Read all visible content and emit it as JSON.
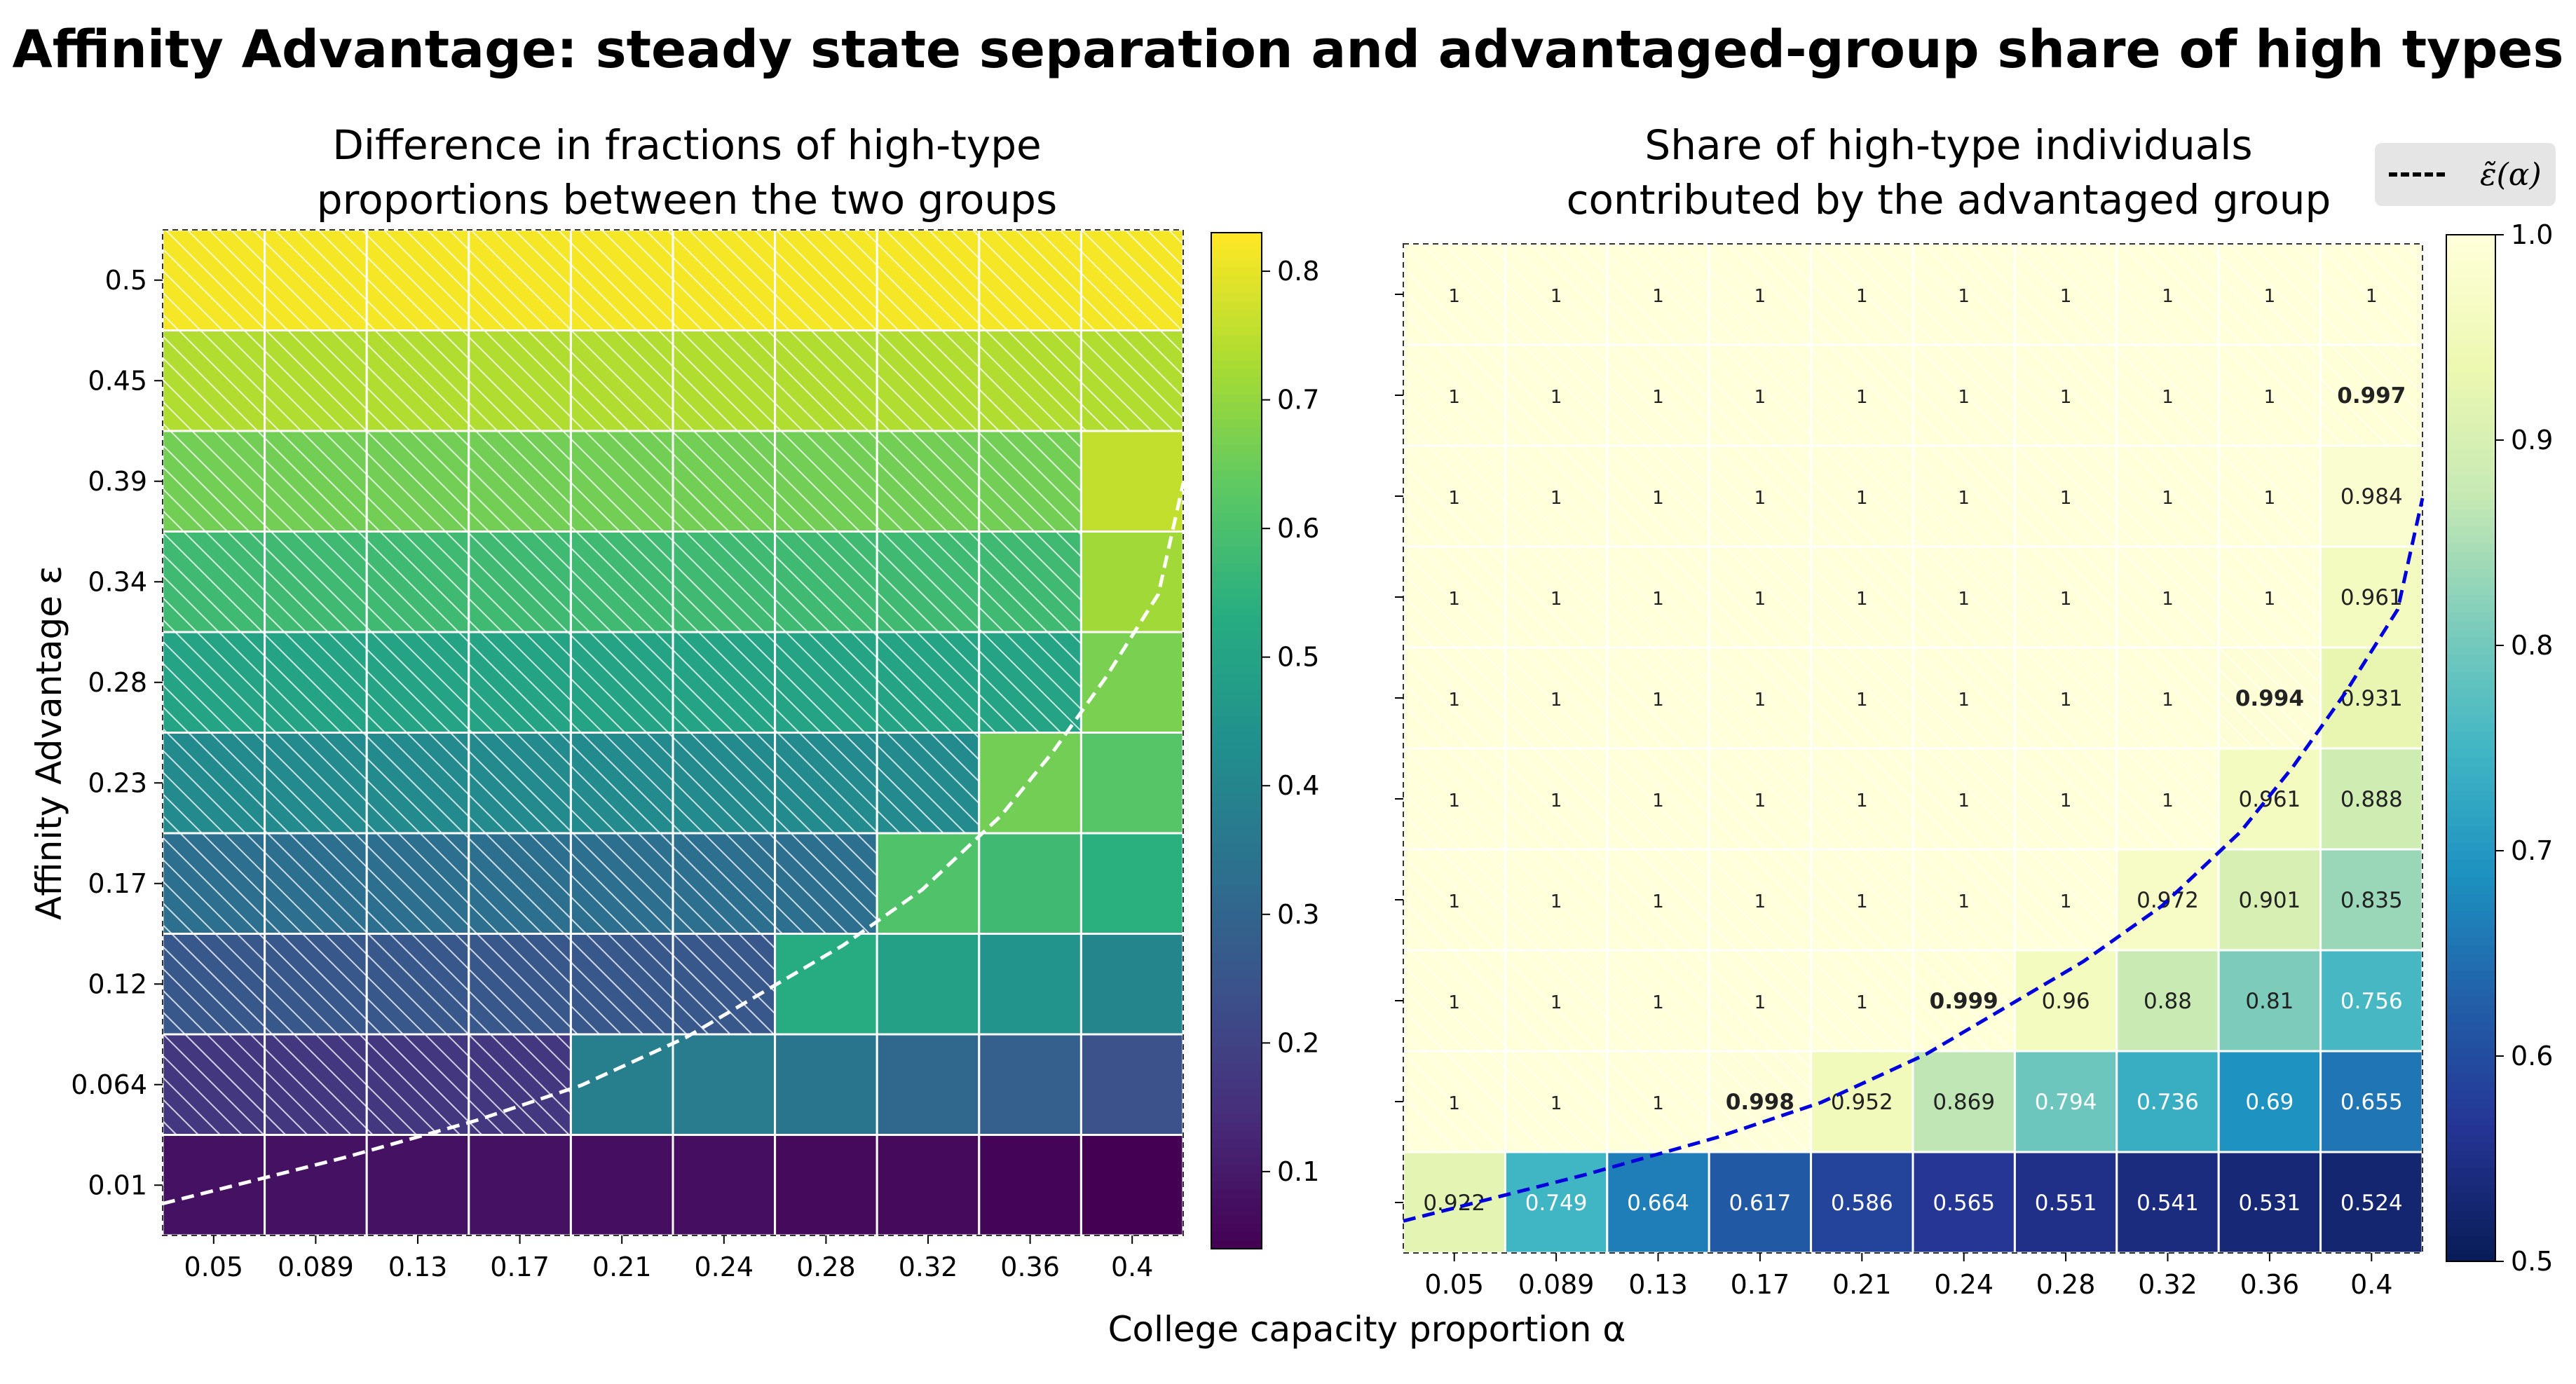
{
  "figure": {
    "suptitle": "Affinity Advantage: steady state separation and advantaged-group share of high types",
    "xlabel": "College capacity proportion α",
    "ylabel": "Affinity Advantage ε",
    "legend": {
      "label": "ε̃(α)",
      "style": "dashed black line",
      "placement": "top-right"
    }
  },
  "chart_data": [
    {
      "type": "heatmap",
      "title": "Difference in fractions of high-type\nproportions between the two groups",
      "xlabel": "College capacity proportion α",
      "ylabel": "Affinity Advantage ε",
      "x_ticks": [
        "0.05",
        "0.089",
        "0.13",
        "0.17",
        "0.21",
        "0.24",
        "0.28",
        "0.32",
        "0.36",
        "0.4"
      ],
      "y_ticks": [
        "0.5",
        "0.45",
        "0.39",
        "0.34",
        "0.28",
        "0.23",
        "0.17",
        "0.12",
        "0.064",
        "0.01"
      ],
      "colormap": "viridis",
      "vmin": 0.04,
      "vmax": 0.83,
      "colorbar_ticks": [
        "0.1",
        "0.2",
        "0.3",
        "0.4",
        "0.5",
        "0.6",
        "0.7",
        "0.8"
      ],
      "values": [
        [
          0.82,
          0.82,
          0.82,
          0.82,
          0.82,
          0.82,
          0.82,
          0.82,
          0.82,
          0.82
        ],
        [
          0.74,
          0.74,
          0.74,
          0.74,
          0.74,
          0.74,
          0.74,
          0.74,
          0.74,
          0.74
        ],
        [
          0.66,
          0.66,
          0.66,
          0.66,
          0.66,
          0.66,
          0.66,
          0.66,
          0.66,
          0.76
        ],
        [
          0.58,
          0.58,
          0.58,
          0.58,
          0.58,
          0.58,
          0.58,
          0.58,
          0.58,
          0.72
        ],
        [
          0.5,
          0.5,
          0.5,
          0.5,
          0.5,
          0.5,
          0.5,
          0.5,
          0.5,
          0.67
        ],
        [
          0.42,
          0.42,
          0.42,
          0.42,
          0.42,
          0.42,
          0.42,
          0.42,
          0.66,
          0.62
        ],
        [
          0.33,
          0.33,
          0.33,
          0.33,
          0.33,
          0.33,
          0.33,
          0.61,
          0.58,
          0.54
        ],
        [
          0.26,
          0.26,
          0.26,
          0.26,
          0.26,
          0.26,
          0.53,
          0.49,
          0.45,
          0.4
        ],
        [
          0.17,
          0.17,
          0.17,
          0.17,
          0.38,
          0.37,
          0.35,
          0.31,
          0.28,
          0.24
        ],
        [
          0.08,
          0.08,
          0.08,
          0.08,
          0.07,
          0.07,
          0.06,
          0.06,
          0.05,
          0.04
        ]
      ],
      "hatched": [
        [
          1,
          1,
          1,
          1,
          1,
          1,
          1,
          1,
          1,
          1
        ],
        [
          1,
          1,
          1,
          1,
          1,
          1,
          1,
          1,
          1,
          1
        ],
        [
          1,
          1,
          1,
          1,
          1,
          1,
          1,
          1,
          1,
          0
        ],
        [
          1,
          1,
          1,
          1,
          1,
          1,
          1,
          1,
          1,
          0
        ],
        [
          1,
          1,
          1,
          1,
          1,
          1,
          1,
          1,
          1,
          0
        ],
        [
          1,
          1,
          1,
          1,
          1,
          1,
          1,
          1,
          0,
          0
        ],
        [
          1,
          1,
          1,
          1,
          1,
          1,
          1,
          0,
          0,
          0
        ],
        [
          1,
          1,
          1,
          1,
          1,
          1,
          0,
          0,
          0,
          0
        ],
        [
          1,
          1,
          1,
          1,
          0,
          0,
          0,
          0,
          0,
          0
        ],
        [
          0,
          0,
          0,
          0,
          0,
          0,
          0,
          0,
          0,
          0
        ]
      ],
      "boundary_curve": {
        "name": "ε̃(α)",
        "style": "dashed white",
        "alpha": [
          0.03,
          0.1,
          0.15,
          0.19,
          0.23,
          0.26,
          0.29,
          0.32,
          0.35,
          0.37,
          0.39,
          0.41,
          0.42
        ],
        "epsilon": [
          0.0,
          0.025,
          0.045,
          0.064,
          0.09,
          0.115,
          0.14,
          0.17,
          0.21,
          0.245,
          0.285,
          0.33,
          0.39
        ]
      }
    },
    {
      "type": "heatmap",
      "title": "Share of high-type individuals\ncontributed by the advantaged group",
      "x_ticks": [
        "0.05",
        "0.089",
        "0.13",
        "0.17",
        "0.21",
        "0.24",
        "0.28",
        "0.32",
        "0.36",
        "0.4"
      ],
      "colormap": "YlGnBu_r",
      "vmin": 0.5,
      "vmax": 1.0,
      "colorbar_ticks": [
        "0.5",
        "0.6",
        "0.7",
        "0.8",
        "0.9",
        "1.0"
      ],
      "values": [
        [
          1,
          1,
          1,
          1,
          1,
          1,
          1,
          1,
          1,
          1
        ],
        [
          1,
          1,
          1,
          1,
          1,
          1,
          1,
          1,
          1,
          0.997
        ],
        [
          1,
          1,
          1,
          1,
          1,
          1,
          1,
          1,
          1,
          0.984
        ],
        [
          1,
          1,
          1,
          1,
          1,
          1,
          1,
          1,
          1,
          0.961
        ],
        [
          1,
          1,
          1,
          1,
          1,
          1,
          1,
          1,
          0.994,
          0.931
        ],
        [
          1,
          1,
          1,
          1,
          1,
          1,
          1,
          1,
          0.961,
          0.888
        ],
        [
          1,
          1,
          1,
          1,
          1,
          1,
          1,
          0.972,
          0.901,
          0.835
        ],
        [
          1,
          1,
          1,
          1,
          1,
          0.999,
          0.96,
          0.88,
          0.81,
          0.756
        ],
        [
          1,
          1,
          1,
          0.998,
          0.952,
          0.869,
          0.794,
          0.736,
          0.69,
          0.655
        ],
        [
          0.922,
          0.749,
          0.664,
          0.617,
          0.586,
          0.565,
          0.551,
          0.541,
          0.531,
          0.524
        ]
      ],
      "labels": [
        [
          "1",
          "1",
          "1",
          "1",
          "1",
          "1",
          "1",
          "1",
          "1",
          "1"
        ],
        [
          "1",
          "1",
          "1",
          "1",
          "1",
          "1",
          "1",
          "1",
          "1",
          "0.997"
        ],
        [
          "1",
          "1",
          "1",
          "1",
          "1",
          "1",
          "1",
          "1",
          "1",
          "0.984"
        ],
        [
          "1",
          "1",
          "1",
          "1",
          "1",
          "1",
          "1",
          "1",
          "1",
          "0.961"
        ],
        [
          "1",
          "1",
          "1",
          "1",
          "1",
          "1",
          "1",
          "1",
          "0.994",
          "0.931"
        ],
        [
          "1",
          "1",
          "1",
          "1",
          "1",
          "1",
          "1",
          "1",
          "0.961",
          "0.888"
        ],
        [
          "1",
          "1",
          "1",
          "1",
          "1",
          "1",
          "1",
          "0.972",
          "0.901",
          "0.835"
        ],
        [
          "1",
          "1",
          "1",
          "1",
          "1",
          "0.999",
          "0.96",
          "0.88",
          "0.81",
          "0.756"
        ],
        [
          "1",
          "1",
          "1",
          "0.998",
          "0.952",
          "0.869",
          "0.794",
          "0.736",
          "0.69",
          "0.655"
        ],
        [
          "0.922",
          "0.749",
          "0.664",
          "0.617",
          "0.586",
          "0.565",
          "0.551",
          "0.541",
          "0.531",
          "0.524"
        ]
      ],
      "bold": [
        [
          0,
          0,
          0,
          0,
          0,
          0,
          0,
          0,
          0,
          0
        ],
        [
          0,
          0,
          0,
          0,
          0,
          0,
          0,
          0,
          0,
          1
        ],
        [
          0,
          0,
          0,
          0,
          0,
          0,
          0,
          0,
          0,
          0
        ],
        [
          0,
          0,
          0,
          0,
          0,
          0,
          0,
          0,
          0,
          0
        ],
        [
          0,
          0,
          0,
          0,
          0,
          0,
          0,
          0,
          1,
          0
        ],
        [
          0,
          0,
          0,
          0,
          0,
          0,
          0,
          0,
          0,
          0
        ],
        [
          0,
          0,
          0,
          0,
          0,
          0,
          0,
          0,
          0,
          0
        ],
        [
          0,
          0,
          0,
          0,
          0,
          1,
          0,
          0,
          0,
          0
        ],
        [
          0,
          0,
          0,
          1,
          0,
          0,
          0,
          0,
          0,
          0
        ],
        [
          0,
          0,
          0,
          0,
          0,
          0,
          0,
          0,
          0,
          0
        ]
      ],
      "hatched": [
        [
          1,
          1,
          1,
          1,
          1,
          1,
          1,
          1,
          1,
          1
        ],
        [
          1,
          1,
          1,
          1,
          1,
          1,
          1,
          1,
          1,
          1
        ],
        [
          1,
          1,
          1,
          1,
          1,
          1,
          1,
          1,
          1,
          0
        ],
        [
          1,
          1,
          1,
          1,
          1,
          1,
          1,
          1,
          1,
          0
        ],
        [
          1,
          1,
          1,
          1,
          1,
          1,
          1,
          1,
          1,
          0
        ],
        [
          1,
          1,
          1,
          1,
          1,
          1,
          1,
          1,
          0,
          0
        ],
        [
          1,
          1,
          1,
          1,
          1,
          1,
          1,
          0,
          0,
          0
        ],
        [
          1,
          1,
          1,
          1,
          1,
          1,
          0,
          0,
          0,
          0
        ],
        [
          1,
          1,
          1,
          1,
          0,
          0,
          0,
          0,
          0,
          0
        ],
        [
          0,
          0,
          0,
          0,
          0,
          0,
          0,
          0,
          0,
          0
        ]
      ],
      "boundary_curve": {
        "name": "ε̃(α)",
        "style": "dashed blue",
        "alpha": [
          0.03,
          0.1,
          0.15,
          0.19,
          0.23,
          0.26,
          0.29,
          0.32,
          0.35,
          0.37,
          0.39,
          0.41,
          0.42
        ],
        "epsilon": [
          0.0,
          0.025,
          0.045,
          0.064,
          0.09,
          0.115,
          0.14,
          0.17,
          0.21,
          0.245,
          0.285,
          0.33,
          0.39
        ]
      }
    }
  ]
}
